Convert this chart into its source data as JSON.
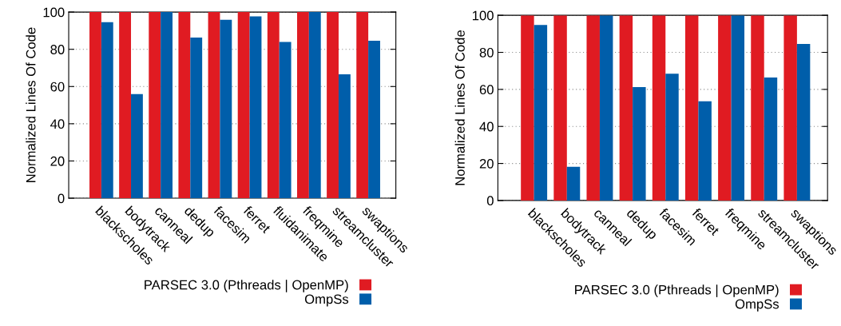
{
  "chart_data": [
    {
      "type": "bar",
      "ylabel": "Normalized Lines Of Code",
      "categories": [
        "blackscholes",
        "bodytrack",
        "canneal",
        "dedup",
        "facesim",
        "ferret",
        "fluidanimate",
        "freqmine",
        "streamcluster",
        "swaptions"
      ],
      "series": [
        {
          "name": "PARSEC 3.0 (Pthreads | OpenMP)",
          "color": "#e01b22",
          "values": [
            100,
            100,
            100,
            100,
            100,
            100,
            100,
            100,
            100,
            100
          ]
        },
        {
          "name": "OmpSs",
          "color": "#005eaa",
          "values": [
            94.6,
            55.9,
            100,
            86.3,
            95.9,
            97.7,
            83.9,
            100,
            66.6,
            84.6
          ]
        }
      ],
      "ylim": [
        0,
        100
      ],
      "yticks": [
        0,
        20,
        40,
        60,
        80,
        100
      ],
      "grid": "y",
      "legend": "bottom"
    },
    {
      "type": "bar",
      "ylabel": "Normalized Lines Of Code",
      "categories": [
        "blackscholes",
        "bodytrack",
        "canneal",
        "dedup",
        "facesim",
        "ferret",
        "freqmine",
        "streamcluster",
        "swaptions"
      ],
      "series": [
        {
          "name": "PARSEC 3.0 (Pthreads | OpenMP)",
          "color": "#e01b22",
          "values": [
            100,
            100,
            100,
            100,
            100,
            100,
            100,
            100,
            100
          ]
        },
        {
          "name": "OmpSs",
          "color": "#005eaa",
          "values": [
            94.8,
            18.2,
            100,
            61.2,
            68.5,
            53.6,
            100,
            66.4,
            84.5
          ]
        }
      ],
      "ylim": [
        0,
        100
      ],
      "yticks": [
        0,
        20,
        40,
        60,
        80,
        100
      ],
      "grid": "y",
      "legend": "bottom"
    }
  ]
}
